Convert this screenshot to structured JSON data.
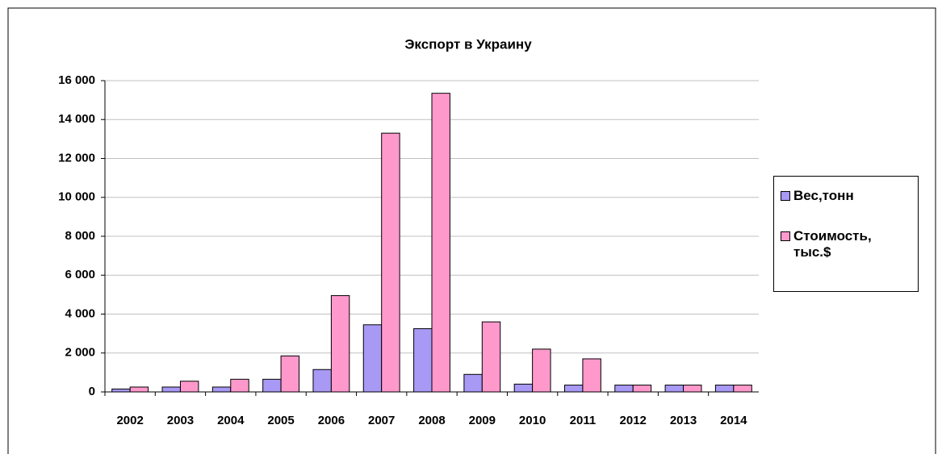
{
  "chart_data": {
    "type": "bar",
    "title": "Экспорт в Украину",
    "categories": [
      "2002",
      "2003",
      "2004",
      "2005",
      "2006",
      "2007",
      "2008",
      "2009",
      "2010",
      "2011",
      "2012",
      "2013",
      "2014"
    ],
    "series": [
      {
        "name": "Вес,тонн",
        "color": "#a899f5",
        "values": [
          150,
          250,
          250,
          650,
          1150,
          3450,
          3250,
          900,
          400,
          350,
          350,
          350,
          350
        ]
      },
      {
        "name": "Стоимость, тыс.$",
        "color": "#ff99cc",
        "values": [
          250,
          550,
          650,
          1850,
          4950,
          13300,
          15350,
          3600,
          2200,
          1700,
          350,
          350,
          350
        ]
      }
    ],
    "ylim": [
      0,
      16000
    ],
    "yticks": [
      0,
      {
        "value": 2000,
        "label": "2 000"
      },
      {
        "value": 4000,
        "label": "4 000"
      },
      {
        "value": 6000,
        "label": "6 000"
      },
      {
        "value": 8000,
        "label": "8 000"
      },
      {
        "value": 10000,
        "label": "10 000"
      },
      {
        "value": 12000,
        "label": "12 000"
      },
      {
        "value": 14000,
        "label": "14 000"
      },
      {
        "value": 16000,
        "label": "16 000"
      }
    ],
    "grid": true,
    "legend": "right"
  }
}
